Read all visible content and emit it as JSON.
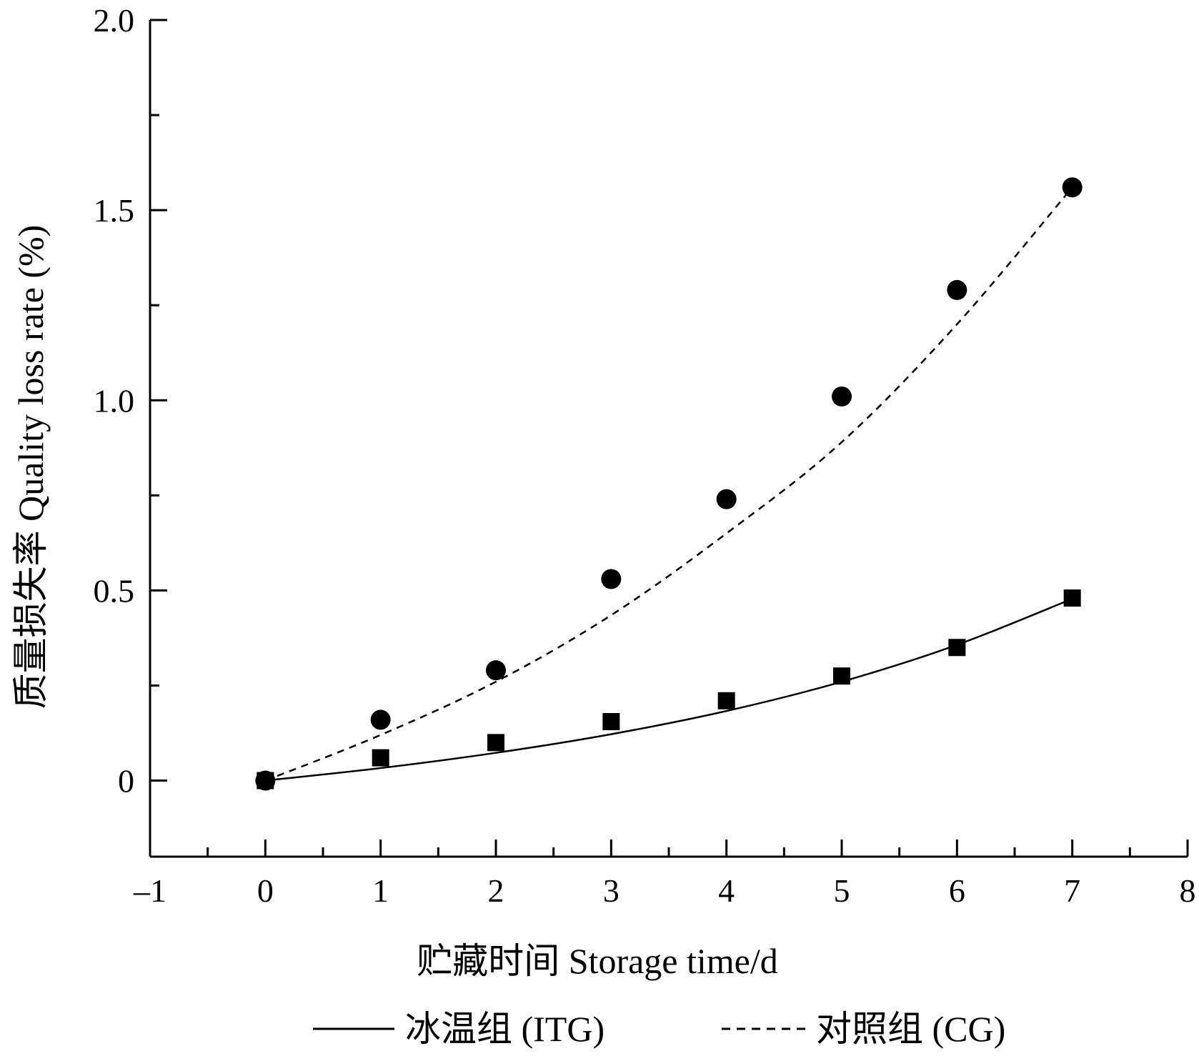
{
  "chart_data": {
    "type": "scatter",
    "title": "",
    "xlabel": "贮藏时间  Storage time/d",
    "ylabel": "质量损失率  Quality loss rate (%)",
    "xlim": [
      -1,
      8
    ],
    "ylim": [
      -0.2,
      2.0
    ],
    "x_ticks": [
      "–1",
      "0",
      "1",
      "2",
      "3",
      "4",
      "5",
      "6",
      "7",
      "8"
    ],
    "y_ticks": [
      "0",
      "0.5",
      "1.0",
      "1.5",
      "2.0"
    ],
    "grid": false,
    "legend_position": "bottom",
    "series": [
      {
        "name": "冰温组 (ITG)",
        "marker": "square",
        "line_style": "solid",
        "x": [
          0,
          1,
          2,
          3,
          4,
          5,
          6,
          7
        ],
        "y": [
          0.0,
          0.06,
          0.1,
          0.155,
          0.21,
          0.275,
          0.35,
          0.48
        ],
        "fit": [
          0,
          0.033,
          0.073,
          0.122,
          0.183,
          0.26,
          0.357,
          0.478
        ]
      },
      {
        "name": "对照组 (CG)",
        "marker": "circle",
        "line_style": "dashed",
        "x": [
          0,
          1,
          2,
          3,
          4,
          5,
          6,
          7
        ],
        "y": [
          0.0,
          0.16,
          0.29,
          0.53,
          0.74,
          1.01,
          1.29,
          1.56
        ],
        "fit": [
          0,
          0.12,
          0.26,
          0.435,
          0.65,
          0.89,
          1.2,
          1.56
        ]
      }
    ]
  }
}
